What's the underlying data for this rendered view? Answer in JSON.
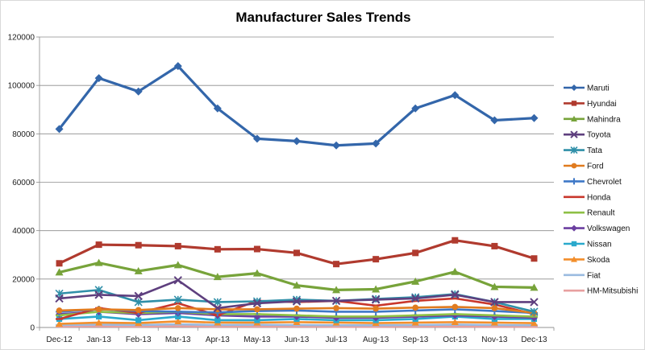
{
  "chart_data": {
    "type": "line",
    "title": "Manufacturer Sales Trends",
    "xlabel": "",
    "ylabel": "",
    "ylim": [
      0,
      120000
    ],
    "y_ticks": [
      "0",
      "20000",
      "40000",
      "60000",
      "80000",
      "100000",
      "120000"
    ],
    "y_tick_values": [
      0,
      20000,
      40000,
      60000,
      80000,
      100000,
      120000
    ],
    "categories": [
      "Dec-12",
      "Jan-13",
      "Feb-13",
      "Mar-13",
      "Apr-13",
      "May-13",
      "Jun-13",
      "Jul-13",
      "Aug-13",
      "Sep-13",
      "Oct-13",
      "Nov-13",
      "Dec-13"
    ],
    "grid": "horizontal",
    "legend_position": "right",
    "series": [
      {
        "name": "Maruti",
        "color": "#3366aa",
        "marker": "diamond",
        "values": [
          82000,
          103000,
          97500,
          108000,
          90500,
          78000,
          77000,
          75200,
          76000,
          90500,
          96000,
          85600,
          86500
        ]
      },
      {
        "name": "Hyundai",
        "color": "#b03a2e",
        "marker": "square",
        "values": [
          26500,
          34200,
          34000,
          33600,
          32300,
          32400,
          30800,
          26200,
          28200,
          30800,
          36000,
          33600,
          28500
        ]
      },
      {
        "name": "Mahindra",
        "color": "#77a33a",
        "marker": "triangle",
        "values": [
          22800,
          26700,
          23300,
          25800,
          20900,
          22400,
          17400,
          15500,
          15800,
          19000,
          23000,
          16800,
          16500
        ]
      },
      {
        "name": "Toyota",
        "color": "#5e3f7e",
        "marker": "x",
        "values": [
          12000,
          13500,
          13000,
          19500,
          8000,
          10000,
          10800,
          11000,
          11500,
          12000,
          13500,
          10500,
          10500
        ]
      },
      {
        "name": "Tata",
        "color": "#2f8fa8",
        "marker": "star",
        "values": [
          14000,
          15500,
          10500,
          11500,
          10500,
          10800,
          11500,
          11000,
          11800,
          12500,
          13800,
          10500,
          6500
        ]
      },
      {
        "name": "Ford",
        "color": "#e07b1f",
        "marker": "circle",
        "values": [
          7000,
          7500,
          7200,
          8000,
          7500,
          7500,
          7800,
          8000,
          7800,
          8200,
          8500,
          8000,
          6000
        ]
      },
      {
        "name": "Chevrolet",
        "color": "#3e78c7",
        "marker": "plus",
        "values": [
          6500,
          7500,
          6800,
          6500,
          6200,
          6800,
          7000,
          6500,
          6500,
          7000,
          7500,
          6800,
          6000
        ]
      },
      {
        "name": "Honda",
        "color": "#c9372c",
        "marker": "dash",
        "values": [
          3500,
          8000,
          6000,
          10000,
          5000,
          11000,
          10500,
          11000,
          9000,
          11000,
          12000,
          9500,
          5500
        ]
      },
      {
        "name": "Renault",
        "color": "#8ec045",
        "marker": "dash",
        "values": [
          5000,
          6500,
          6000,
          6500,
          5500,
          5500,
          5000,
          4500,
          4500,
          5000,
          5500,
          5000,
          4500
        ]
      },
      {
        "name": "Volkswagen",
        "color": "#6b3fa0",
        "marker": "diamond",
        "values": [
          5500,
          6500,
          5500,
          6000,
          5000,
          4500,
          4500,
          4000,
          4000,
          4500,
          5000,
          4500,
          4000
        ]
      },
      {
        "name": "Nissan",
        "color": "#2aa9cc",
        "marker": "square",
        "values": [
          3500,
          4500,
          3000,
          4500,
          3000,
          3000,
          3500,
          3000,
          3000,
          3500,
          4500,
          3500,
          3500
        ]
      },
      {
        "name": "Skoda",
        "color": "#f28e2b",
        "marker": "triangle",
        "values": [
          1500,
          2000,
          1800,
          2500,
          2000,
          2000,
          2200,
          2000,
          1800,
          2000,
          2200,
          2000,
          1800
        ]
      },
      {
        "name": "Fiat",
        "color": "#9bbbe0",
        "marker": "dash",
        "values": [
          1000,
          1200,
          1000,
          1300,
          1000,
          1100,
          1000,
          900,
          900,
          1000,
          1200,
          1000,
          900
        ]
      },
      {
        "name": "HM-Mitsubishi",
        "color": "#e8a0a0",
        "marker": "dash",
        "values": [
          400,
          500,
          400,
          500,
          400,
          400,
          400,
          300,
          300,
          400,
          400,
          300,
          300
        ]
      }
    ]
  }
}
